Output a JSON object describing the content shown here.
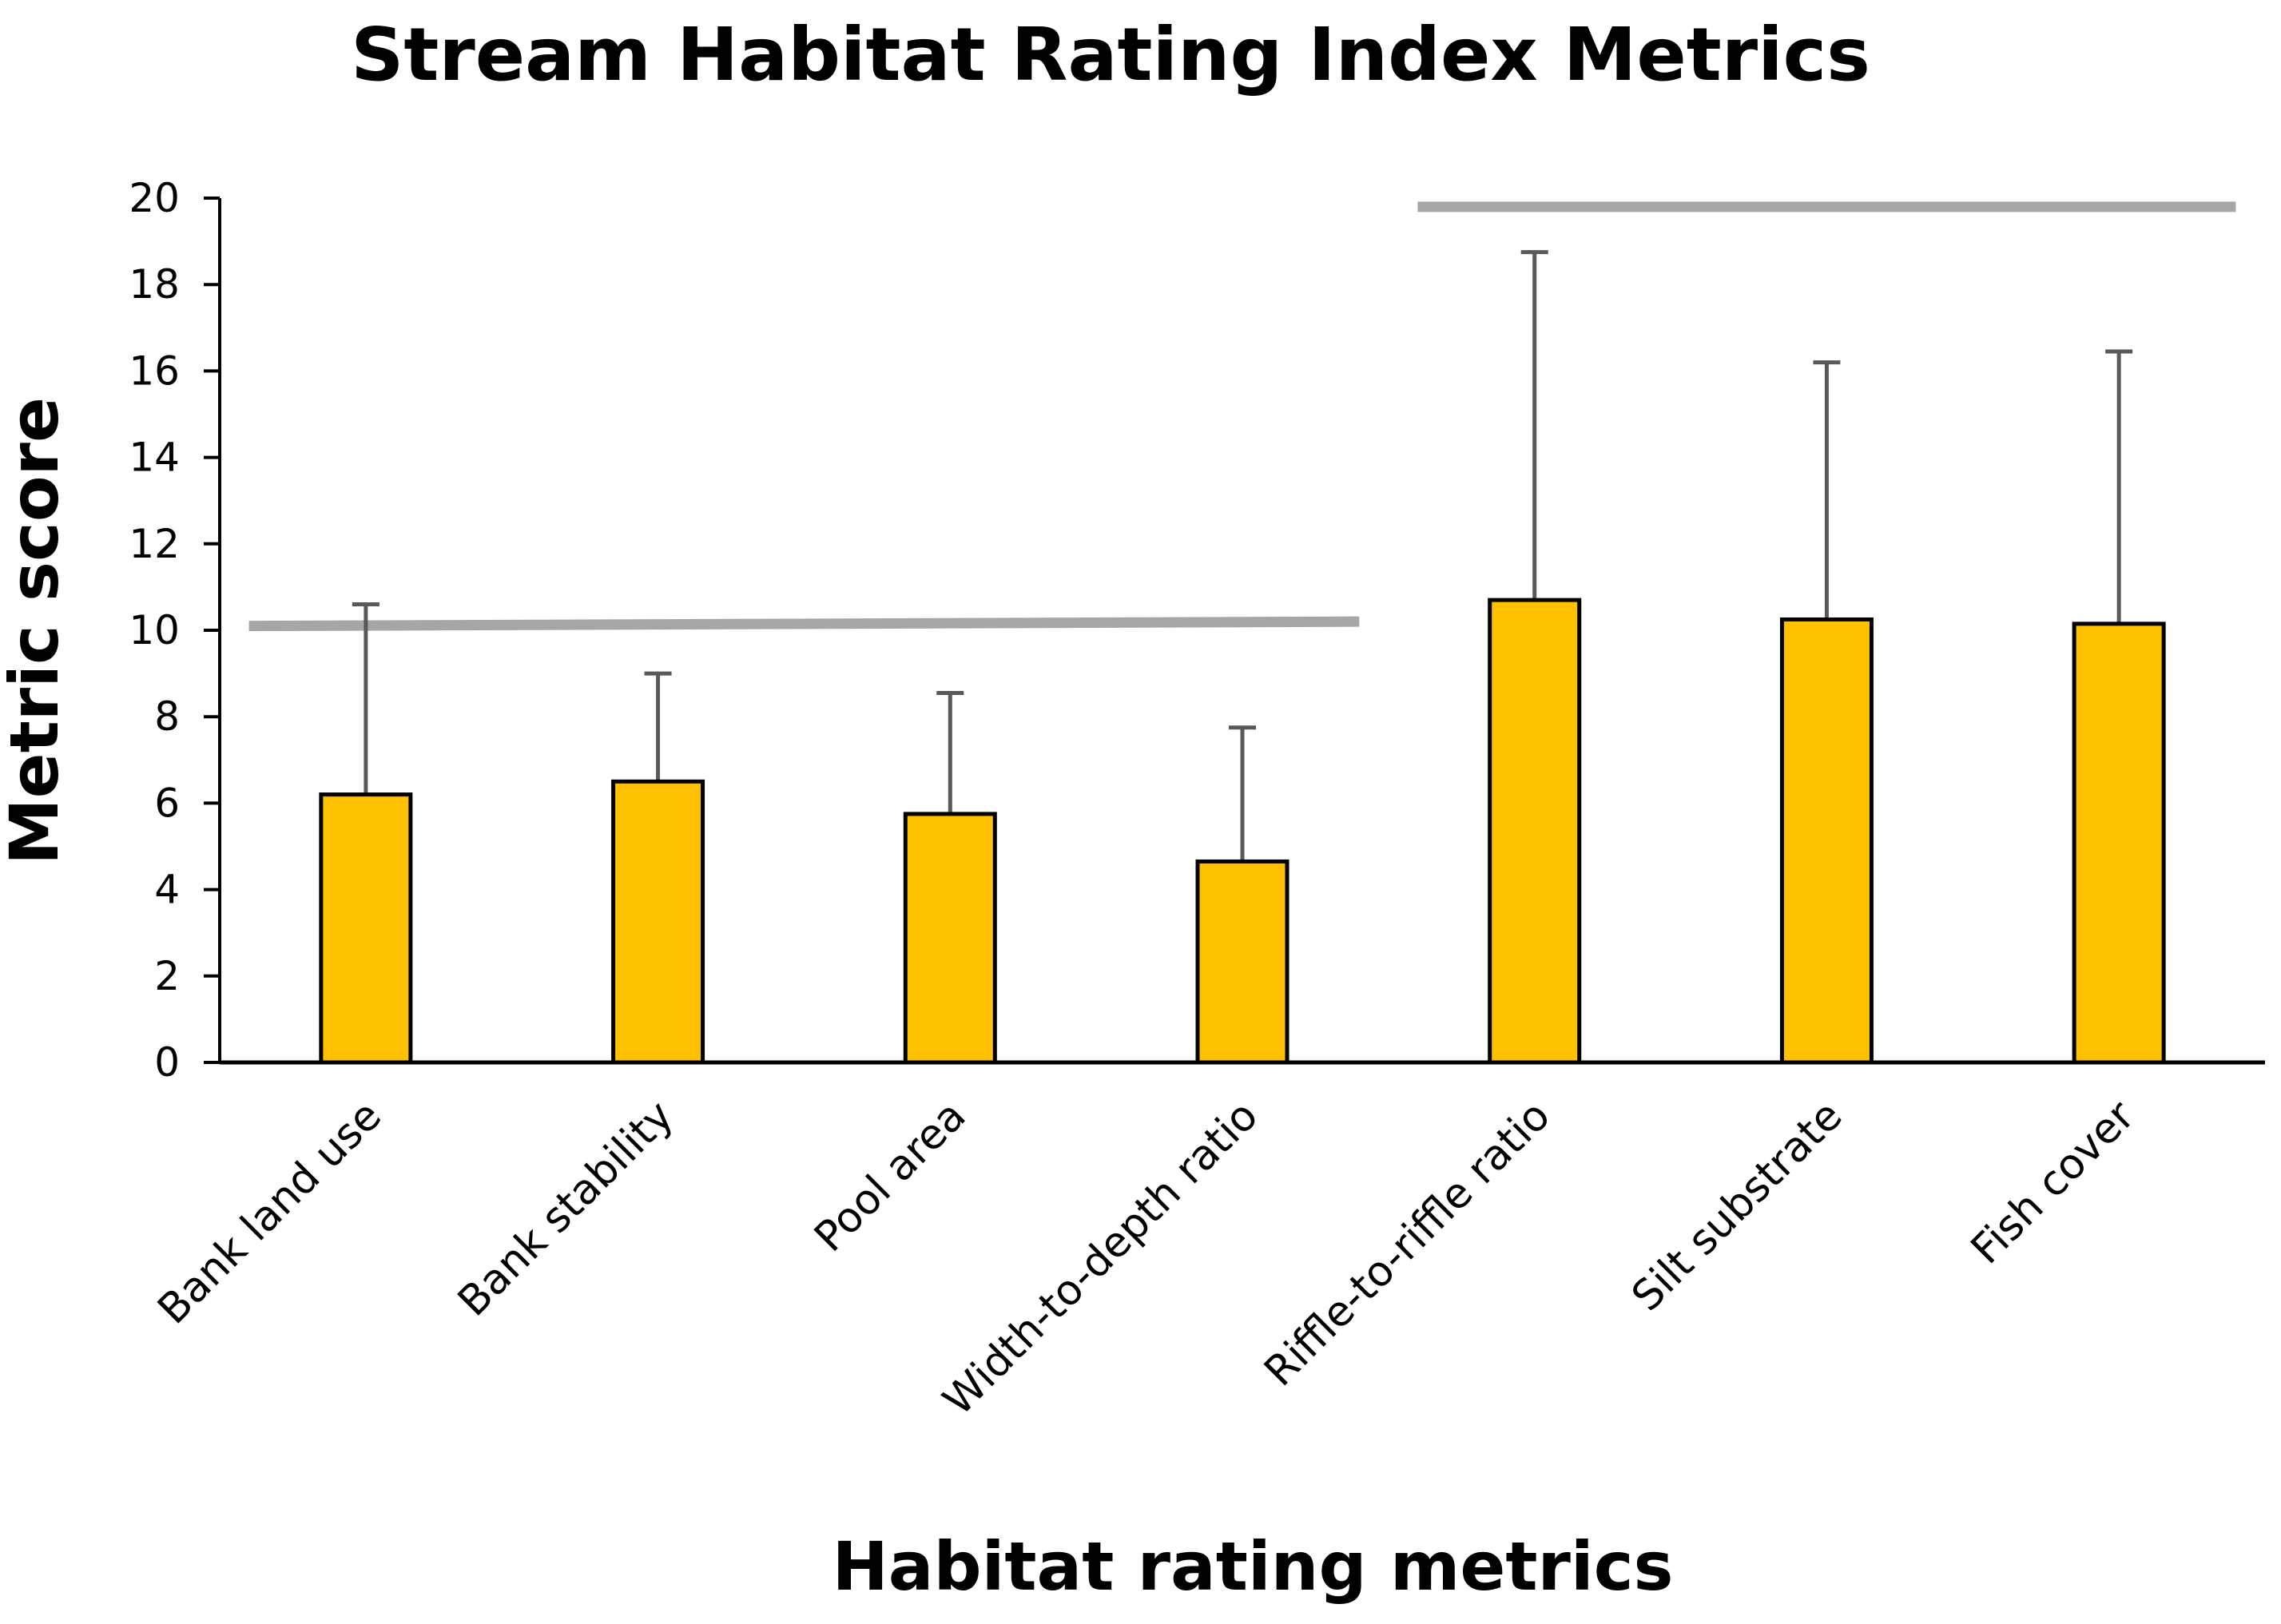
{
  "chart_data": {
    "type": "bar",
    "title": "Stream Habitat Rating Index Metrics",
    "xlabel": "Habitat rating metrics",
    "ylabel": "Metric score",
    "ylim": [
      0,
      20
    ],
    "yticks": [
      0,
      2,
      4,
      6,
      8,
      10,
      12,
      14,
      16,
      18,
      20
    ],
    "categories": [
      "Bank land use",
      "Bank stability",
      "Pool area",
      "Width-to-depth ratio",
      "Riffle-to-riffle ratio",
      "Silt substrate",
      "Fish cover"
    ],
    "values": [
      6.2,
      6.5,
      5.75,
      4.65,
      10.7,
      10.25,
      10.15
    ],
    "error_upper": [
      4.4,
      2.5,
      2.8,
      3.1,
      8.05,
      5.95,
      6.3
    ],
    "grid": false,
    "reference_lines": [
      {
        "x_start_category": 0,
        "x_end_category": 3,
        "y_start": 10.1,
        "y_end": 10.2
      },
      {
        "x_start_category": 4,
        "x_end_category": 6,
        "y_start": 19.8,
        "y_end": 19.8
      }
    ],
    "colors": {
      "bar_fill": "#FFC000",
      "bar_stroke": "#000000",
      "error_bar": "#595959",
      "reference_line": "#A6A6A6",
      "axis": "#000000"
    }
  }
}
